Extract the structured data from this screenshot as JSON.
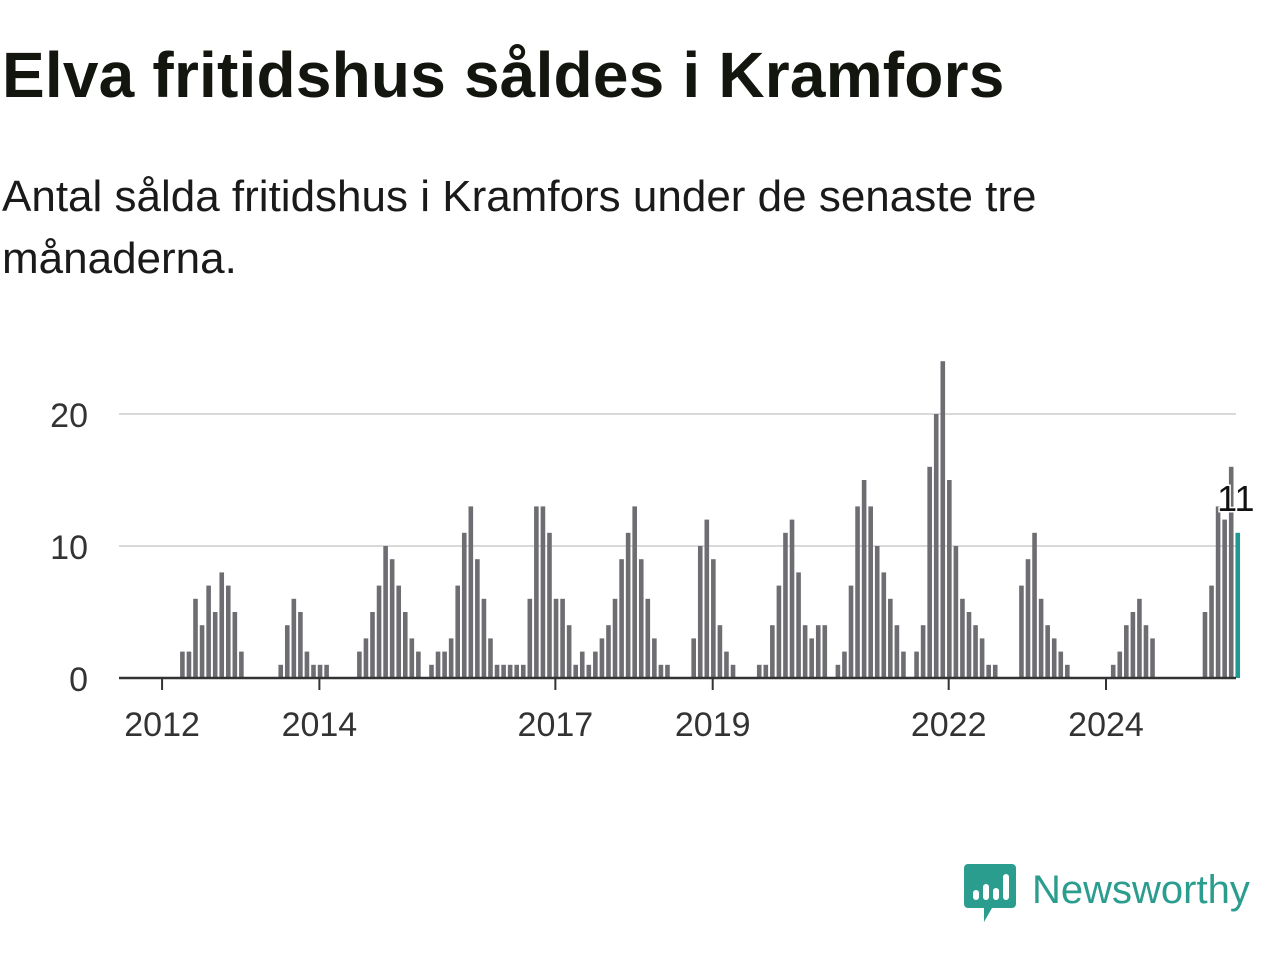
{
  "title": "Elva fritidshus såldes i Kramfors",
  "subtitle": "Antal sålda fritidshus i Kramfors under de senaste tre månaderna.",
  "brand": {
    "name": "Newsworthy",
    "logo_icon": "newsworthy-logo-icon",
    "color": "#2a9d8f"
  },
  "chart_data": {
    "type": "bar",
    "title": "Elva fritidshus såldes i Kramfors",
    "subtitle": "Antal sålda fritidshus i Kramfors under de senaste tre månaderna.",
    "x_start": "2011-01",
    "x_interval": "month",
    "x_tick_labels": [
      "2012",
      "2014",
      "2017",
      "2019",
      "2022",
      "2024"
    ],
    "y_ticks": [
      0,
      10,
      20
    ],
    "ylim": [
      0,
      24
    ],
    "grid": "horizontal",
    "bar_color": "#6e6d72",
    "highlight_color": "#21998e",
    "highlight_label": "11",
    "values": [
      0,
      0,
      0,
      0,
      0,
      0,
      0,
      0,
      0,
      0,
      0,
      0,
      0,
      0,
      2,
      2,
      6,
      4,
      7,
      5,
      8,
      7,
      5,
      2,
      0,
      0,
      0,
      0,
      0,
      1,
      4,
      6,
      5,
      2,
      1,
      1,
      1,
      0,
      0,
      0,
      0,
      2,
      3,
      5,
      7,
      10,
      9,
      7,
      5,
      3,
      2,
      0,
      1,
      2,
      2,
      3,
      7,
      11,
      13,
      9,
      6,
      3,
      1,
      1,
      1,
      1,
      1,
      6,
      13,
      13,
      11,
      6,
      6,
      4,
      1,
      2,
      1,
      2,
      3,
      4,
      6,
      9,
      11,
      13,
      9,
      6,
      3,
      1,
      1,
      0,
      0,
      0,
      3,
      10,
      12,
      9,
      4,
      2,
      1,
      0,
      0,
      0,
      1,
      1,
      4,
      7,
      11,
      12,
      8,
      4,
      3,
      4,
      4,
      0,
      1,
      2,
      7,
      13,
      15,
      13,
      10,
      8,
      6,
      4,
      2,
      0,
      2,
      4,
      16,
      20,
      24,
      15,
      10,
      6,
      5,
      4,
      3,
      1,
      1,
      0,
      0,
      0,
      7,
      9,
      11,
      6,
      4,
      3,
      2,
      1,
      0,
      0,
      0,
      0,
      0,
      0,
      1,
      2,
      4,
      5,
      6,
      4,
      3,
      0,
      0,
      0,
      0,
      0,
      0,
      0,
      5,
      7,
      13,
      12,
      16,
      11
    ]
  }
}
